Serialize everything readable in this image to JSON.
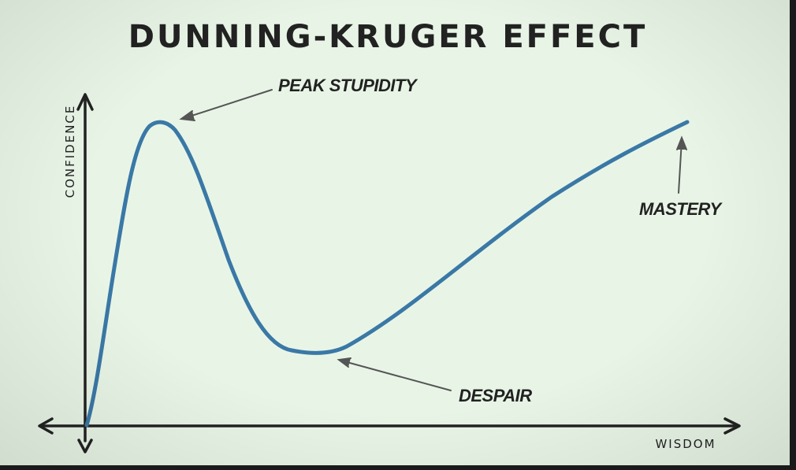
{
  "title": "DUNNING-KRUGER EFFECT",
  "y_axis_label": "CONFIDENCE",
  "x_axis_label": "WISDOM",
  "annotations": {
    "peak": "PEAK STUPIDITY",
    "trough": "DESPAIR",
    "end": "MASTERY"
  },
  "colors": {
    "background": "#e8f5e6",
    "curve": "#3a78a6",
    "ink": "#222222"
  }
}
